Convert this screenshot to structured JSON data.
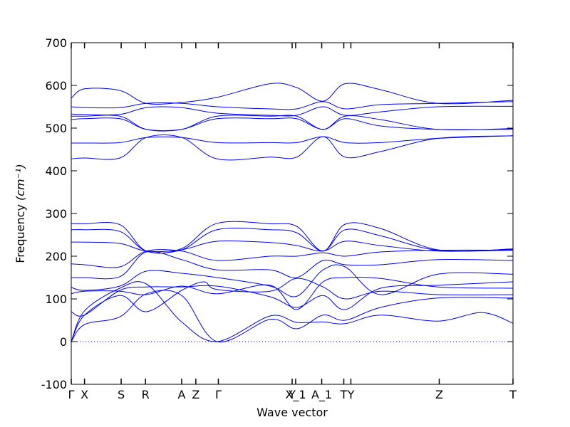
{
  "chart_data": {
    "type": "line",
    "title": "",
    "xlabel": "Wave vector",
    "ylabel": "Frequency",
    "ylabel_unit": "(cm⁻¹)",
    "ylim": [
      -100,
      700
    ],
    "yticks": [
      -100,
      0,
      100,
      200,
      300,
      400,
      500,
      600,
      700
    ],
    "xlim": [
      0,
      1
    ],
    "xticks": [
      {
        "x": 0.0,
        "label": "Γ"
      },
      {
        "x": 0.03,
        "label": "X"
      },
      {
        "x": 0.113,
        "label": "S"
      },
      {
        "x": 0.168,
        "label": "R"
      },
      {
        "x": 0.25,
        "label": "A"
      },
      {
        "x": 0.282,
        "label": "Z"
      },
      {
        "x": 0.333,
        "label": "Γ"
      },
      {
        "x": 0.5,
        "label": "Y"
      },
      {
        "x": 0.508,
        "label": "X_1"
      },
      {
        "x": 0.567,
        "label": "A_1"
      },
      {
        "x": 0.617,
        "label": "T"
      },
      {
        "x": 0.633,
        "label": "Y"
      },
      {
        "x": 0.833,
        "label": "Z"
      },
      {
        "x": 1.0,
        "label": "T"
      }
    ],
    "zero_line": true,
    "line_color": "#0000ff",
    "series": [
      {
        "values": [
          [
            0.0,
            0
          ],
          [
            0.03,
            72
          ],
          [
            0.11,
            125
          ],
          [
            0.17,
            135
          ],
          [
            0.25,
            46
          ],
          [
            0.33,
            0
          ],
          [
            0.45,
            60
          ],
          [
            0.51,
            45
          ],
          [
            0.57,
            46
          ],
          [
            0.62,
            42
          ],
          [
            0.7,
            62
          ],
          [
            0.83,
            48
          ],
          [
            0.93,
            68
          ],
          [
            1.0,
            43
          ]
        ]
      },
      {
        "values": [
          [
            0.0,
            0
          ],
          [
            0.03,
            40
          ],
          [
            0.11,
            58
          ],
          [
            0.17,
            112
          ],
          [
            0.25,
            108
          ],
          [
            0.33,
            0
          ],
          [
            0.45,
            52
          ],
          [
            0.51,
            30
          ],
          [
            0.57,
            62
          ],
          [
            0.62,
            50
          ],
          [
            0.7,
            80
          ],
          [
            0.83,
            102
          ],
          [
            1.0,
            102
          ]
        ]
      },
      {
        "values": [
          [
            0.0,
            0
          ],
          [
            0.03,
            62
          ],
          [
            0.11,
            108
          ],
          [
            0.17,
            70
          ],
          [
            0.25,
            120
          ],
          [
            0.3,
            140
          ],
          [
            0.33,
            122
          ],
          [
            0.45,
            118
          ],
          [
            0.51,
            148
          ],
          [
            0.57,
            128
          ],
          [
            0.62,
            100
          ],
          [
            0.7,
            118
          ],
          [
            0.83,
            110
          ],
          [
            1.0,
            110
          ]
        ]
      },
      {
        "values": [
          [
            0.0,
            70
          ],
          [
            0.03,
            62
          ],
          [
            0.11,
            120
          ],
          [
            0.17,
            128
          ],
          [
            0.25,
            128
          ],
          [
            0.33,
            130
          ],
          [
            0.45,
            105
          ],
          [
            0.51,
            80
          ],
          [
            0.57,
            108
          ],
          [
            0.62,
            75
          ],
          [
            0.7,
            125
          ],
          [
            0.83,
            132
          ],
          [
            1.0,
            140
          ]
        ]
      },
      {
        "values": [
          [
            0.0,
            112
          ],
          [
            0.03,
            118
          ],
          [
            0.11,
            118
          ],
          [
            0.17,
            110
          ],
          [
            0.25,
            130
          ],
          [
            0.33,
            112
          ],
          [
            0.45,
            132
          ],
          [
            0.51,
            75
          ],
          [
            0.57,
            140
          ],
          [
            0.62,
            150
          ],
          [
            0.7,
            148
          ],
          [
            0.83,
            128
          ],
          [
            1.0,
            125
          ]
        ]
      },
      {
        "values": [
          [
            0.0,
            127
          ],
          [
            0.03,
            120
          ],
          [
            0.11,
            130
          ],
          [
            0.17,
            165
          ],
          [
            0.25,
            160
          ],
          [
            0.33,
            150
          ],
          [
            0.45,
            130
          ],
          [
            0.51,
            106
          ],
          [
            0.57,
            168
          ],
          [
            0.62,
            175
          ],
          [
            0.7,
            110
          ],
          [
            0.83,
            158
          ],
          [
            1.0,
            158
          ]
        ]
      },
      {
        "values": [
          [
            0.0,
            150
          ],
          [
            0.03,
            150
          ],
          [
            0.11,
            152
          ],
          [
            0.17,
            210
          ],
          [
            0.25,
            192
          ],
          [
            0.33,
            168
          ],
          [
            0.45,
            168
          ],
          [
            0.51,
            150
          ],
          [
            0.57,
            190
          ],
          [
            0.62,
            180
          ],
          [
            0.7,
            180
          ],
          [
            0.83,
            192
          ],
          [
            1.0,
            190
          ]
        ]
      },
      {
        "values": [
          [
            0.0,
            182
          ],
          [
            0.03,
            180
          ],
          [
            0.11,
            175
          ],
          [
            0.17,
            212
          ],
          [
            0.25,
            212
          ],
          [
            0.33,
            190
          ],
          [
            0.45,
            200
          ],
          [
            0.51,
            200
          ],
          [
            0.57,
            208
          ],
          [
            0.62,
            200
          ],
          [
            0.7,
            210
          ],
          [
            0.83,
            214
          ],
          [
            1.0,
            214
          ]
        ]
      },
      {
        "values": [
          [
            0.0,
            233
          ],
          [
            0.03,
            233
          ],
          [
            0.11,
            230
          ],
          [
            0.17,
            212
          ],
          [
            0.25,
            215
          ],
          [
            0.33,
            235
          ],
          [
            0.45,
            232
          ],
          [
            0.51,
            225
          ],
          [
            0.57,
            212
          ],
          [
            0.62,
            235
          ],
          [
            0.7,
            225
          ],
          [
            0.83,
            212
          ],
          [
            1.0,
            214
          ]
        ]
      },
      {
        "values": [
          [
            0.0,
            262
          ],
          [
            0.03,
            262
          ],
          [
            0.11,
            258
          ],
          [
            0.17,
            212
          ],
          [
            0.25,
            215
          ],
          [
            0.33,
            262
          ],
          [
            0.45,
            262
          ],
          [
            0.51,
            255
          ],
          [
            0.57,
            212
          ],
          [
            0.62,
            262
          ],
          [
            0.7,
            248
          ],
          [
            0.83,
            214
          ],
          [
            1.0,
            216
          ]
        ]
      },
      {
        "values": [
          [
            0.0,
            276
          ],
          [
            0.03,
            276
          ],
          [
            0.11,
            274
          ],
          [
            0.17,
            212
          ],
          [
            0.25,
            218
          ],
          [
            0.33,
            277
          ],
          [
            0.45,
            276
          ],
          [
            0.51,
            270
          ],
          [
            0.57,
            212
          ],
          [
            0.62,
            275
          ],
          [
            0.7,
            265
          ],
          [
            0.83,
            215
          ],
          [
            1.0,
            217
          ]
        ]
      },
      {
        "values": [
          [
            0.0,
            428
          ],
          [
            0.03,
            430
          ],
          [
            0.11,
            430
          ],
          [
            0.17,
            478
          ],
          [
            0.25,
            478
          ],
          [
            0.33,
            428
          ],
          [
            0.45,
            432
          ],
          [
            0.51,
            432
          ],
          [
            0.57,
            480
          ],
          [
            0.62,
            432
          ],
          [
            0.7,
            445
          ],
          [
            0.83,
            476
          ],
          [
            1.0,
            482
          ]
        ]
      },
      {
        "values": [
          [
            0.0,
            465
          ],
          [
            0.03,
            465
          ],
          [
            0.11,
            466
          ],
          [
            0.17,
            478
          ],
          [
            0.25,
            478
          ],
          [
            0.33,
            466
          ],
          [
            0.45,
            466
          ],
          [
            0.51,
            466
          ],
          [
            0.57,
            480
          ],
          [
            0.62,
            466
          ],
          [
            0.7,
            466
          ],
          [
            0.83,
            476
          ],
          [
            1.0,
            482
          ]
        ]
      },
      {
        "values": [
          [
            0.0,
            520
          ],
          [
            0.03,
            522
          ],
          [
            0.11,
            522
          ],
          [
            0.17,
            497
          ],
          [
            0.25,
            497
          ],
          [
            0.33,
            522
          ],
          [
            0.45,
            522
          ],
          [
            0.51,
            522
          ],
          [
            0.57,
            497
          ],
          [
            0.62,
            522
          ],
          [
            0.7,
            505
          ],
          [
            0.83,
            497
          ],
          [
            1.0,
            497
          ]
        ]
      },
      {
        "values": [
          [
            0.0,
            528
          ],
          [
            0.03,
            528
          ],
          [
            0.11,
            528
          ],
          [
            0.17,
            497
          ],
          [
            0.25,
            497
          ],
          [
            0.33,
            528
          ],
          [
            0.45,
            528
          ],
          [
            0.51,
            528
          ],
          [
            0.57,
            497
          ],
          [
            0.62,
            528
          ],
          [
            0.7,
            520
          ],
          [
            0.83,
            497
          ],
          [
            1.0,
            499
          ]
        ]
      },
      {
        "values": [
          [
            0.0,
            533
          ],
          [
            0.03,
            532
          ],
          [
            0.11,
            532
          ],
          [
            0.17,
            548
          ],
          [
            0.25,
            548
          ],
          [
            0.33,
            535
          ],
          [
            0.45,
            530
          ],
          [
            0.51,
            530
          ],
          [
            0.57,
            550
          ],
          [
            0.62,
            530
          ],
          [
            0.7,
            538
          ],
          [
            0.83,
            550
          ],
          [
            1.0,
            551
          ]
        ]
      },
      {
        "values": [
          [
            0.0,
            550
          ],
          [
            0.03,
            548
          ],
          [
            0.11,
            548
          ],
          [
            0.17,
            558
          ],
          [
            0.25,
            558
          ],
          [
            0.33,
            550
          ],
          [
            0.45,
            545
          ],
          [
            0.51,
            545
          ],
          [
            0.57,
            562
          ],
          [
            0.62,
            545
          ],
          [
            0.7,
            555
          ],
          [
            0.83,
            558
          ],
          [
            1.0,
            562
          ]
        ]
      },
      {
        "values": [
          [
            0.0,
            570
          ],
          [
            0.03,
            592
          ],
          [
            0.11,
            588
          ],
          [
            0.17,
            558
          ],
          [
            0.25,
            560
          ],
          [
            0.33,
            572
          ],
          [
            0.45,
            604
          ],
          [
            0.51,
            595
          ],
          [
            0.57,
            563
          ],
          [
            0.62,
            604
          ],
          [
            0.7,
            590
          ],
          [
            0.83,
            558
          ],
          [
            1.0,
            565
          ]
        ]
      }
    ]
  }
}
